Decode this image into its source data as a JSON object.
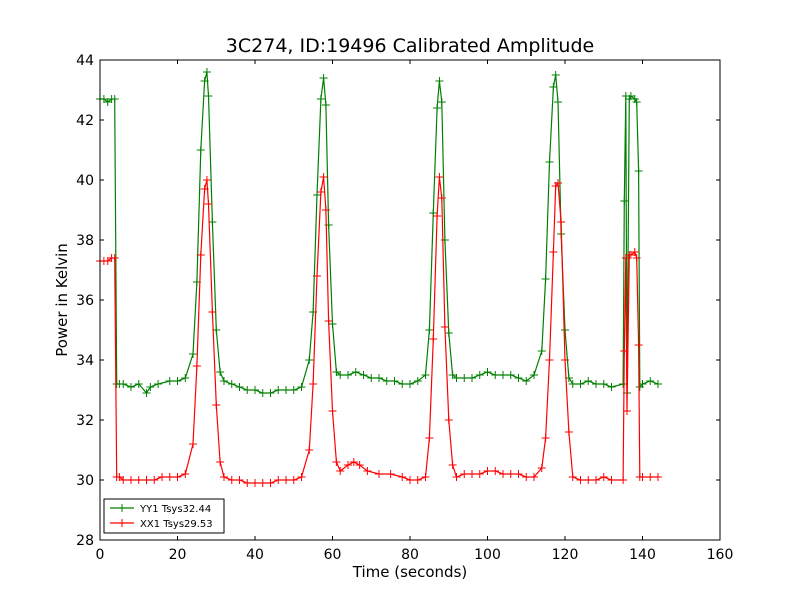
{
  "chart_data": {
    "type": "line",
    "title": "3C274, ID:19496 Calibrated Amplitude",
    "xlabel": "Time (seconds)",
    "ylabel": "Power in Kelvin",
    "xlim": [
      0,
      160
    ],
    "ylim": [
      28,
      44
    ],
    "xticks": [
      0,
      20,
      40,
      60,
      80,
      100,
      120,
      140,
      160
    ],
    "yticks": [
      28,
      30,
      32,
      34,
      36,
      38,
      40,
      42,
      44
    ],
    "grid": false,
    "legend_position": "lower-left",
    "marker": "plus",
    "series": [
      {
        "name": "YY1 Tsys32.44",
        "color": "#008000",
        "x": [
          0,
          1,
          2,
          3,
          3.8,
          4.3,
          5,
          6,
          8,
          10,
          12,
          13,
          15,
          18,
          20,
          22,
          24,
          25,
          26,
          27,
          27.6,
          28,
          29,
          30,
          31,
          32,
          34,
          36,
          38,
          40,
          42,
          44,
          46,
          48,
          50,
          52,
          54,
          55,
          56,
          57,
          57.7,
          58.3,
          59,
          60,
          61,
          62,
          64,
          66,
          68,
          70,
          72,
          74,
          76,
          78,
          80,
          82,
          84,
          85,
          86,
          87,
          87.6,
          88.2,
          89,
          90,
          91,
          92,
          94,
          96,
          98,
          100,
          102,
          104,
          106,
          108,
          110,
          112,
          114,
          115,
          116,
          117,
          117.6,
          118.2,
          119,
          120,
          121,
          122,
          124,
          126,
          128,
          130,
          132,
          135,
          135.3,
          135.7,
          136,
          136.6,
          137,
          138,
          138.5,
          139,
          139.3,
          140,
          142,
          144
        ],
        "y": [
          42.7,
          42.7,
          42.6,
          42.7,
          42.7,
          33.2,
          33.2,
          33.2,
          33.1,
          33.2,
          32.9,
          33.1,
          33.2,
          33.3,
          33.3,
          33.4,
          34.2,
          36.6,
          41.0,
          43.3,
          43.6,
          42.8,
          38.6,
          35.0,
          33.6,
          33.3,
          33.2,
          33.1,
          33.0,
          33.0,
          32.9,
          32.9,
          33.0,
          33.0,
          33.0,
          33.1,
          34.0,
          35.6,
          39.5,
          42.7,
          43.4,
          42.5,
          38.5,
          35.2,
          33.6,
          33.5,
          33.5,
          33.6,
          33.5,
          33.4,
          33.4,
          33.3,
          33.3,
          33.2,
          33.2,
          33.3,
          33.5,
          35.0,
          38.9,
          42.4,
          43.3,
          42.6,
          38.0,
          34.9,
          33.5,
          33.4,
          33.4,
          33.4,
          33.5,
          33.6,
          33.5,
          33.5,
          33.5,
          33.4,
          33.3,
          33.5,
          34.3,
          36.7,
          40.6,
          43.1,
          43.5,
          42.6,
          38.2,
          35.0,
          33.4,
          33.2,
          33.2,
          33.3,
          33.2,
          33.2,
          33.1,
          33.2,
          39.3,
          42.8,
          32.9,
          42.7,
          42.8,
          42.7,
          42.6,
          40.3,
          33.1,
          33.2,
          33.3,
          33.2
        ]
      },
      {
        "name": "XX1 Tsys29.53",
        "color": "#ff0000",
        "x": [
          0,
          1,
          2,
          3,
          3.8,
          4.3,
          5,
          6,
          8,
          10,
          12,
          14,
          16,
          18,
          20,
          22,
          24,
          25,
          26,
          27,
          27.6,
          28,
          29,
          30,
          31,
          32,
          34,
          36,
          38,
          40,
          42,
          44,
          46,
          48,
          50,
          52,
          54,
          55,
          56,
          57,
          57.7,
          58.3,
          59,
          60,
          61,
          62,
          64,
          65.5,
          67,
          69,
          72,
          75,
          78,
          80,
          82,
          84,
          85,
          86,
          87,
          87.6,
          88.2,
          89,
          90,
          91,
          92,
          94,
          96,
          98,
          100,
          102,
          104,
          106,
          108,
          110,
          112,
          114,
          115,
          116,
          117,
          117.6,
          118.2,
          119,
          120,
          121,
          122,
          124,
          126,
          128,
          130,
          132,
          135,
          135.3,
          135.7,
          136,
          136.6,
          137,
          138,
          138.5,
          139,
          139.3,
          140,
          142,
          144
        ],
        "y": [
          37.3,
          37.3,
          37.3,
          37.4,
          37.4,
          30.1,
          30.1,
          30.0,
          30.0,
          30.0,
          30.0,
          30.0,
          30.1,
          30.1,
          30.1,
          30.2,
          31.2,
          33.8,
          37.5,
          39.7,
          40.0,
          39.2,
          35.6,
          32.5,
          30.6,
          30.1,
          30.0,
          30.0,
          29.9,
          29.9,
          29.9,
          29.9,
          30.0,
          30.0,
          30.0,
          30.1,
          31.0,
          33.2,
          36.8,
          39.6,
          40.1,
          39.0,
          35.3,
          32.3,
          30.6,
          30.3,
          30.5,
          30.6,
          30.5,
          30.3,
          30.2,
          30.2,
          30.1,
          30.0,
          30.0,
          30.1,
          31.4,
          34.7,
          38.8,
          40.1,
          39.4,
          35.1,
          32.0,
          30.5,
          30.1,
          30.2,
          30.2,
          30.2,
          30.3,
          30.3,
          30.2,
          30.2,
          30.2,
          30.1,
          30.1,
          30.4,
          31.4,
          34.0,
          37.6,
          39.8,
          39.9,
          38.6,
          34.0,
          31.6,
          30.1,
          30.0,
          30.0,
          30.0,
          30.1,
          30.0,
          30.0,
          34.3,
          37.4,
          32.3,
          37.5,
          37.5,
          37.6,
          37.4,
          34.5,
          30.1,
          30.1,
          30.1,
          30.1
        ]
      }
    ]
  }
}
